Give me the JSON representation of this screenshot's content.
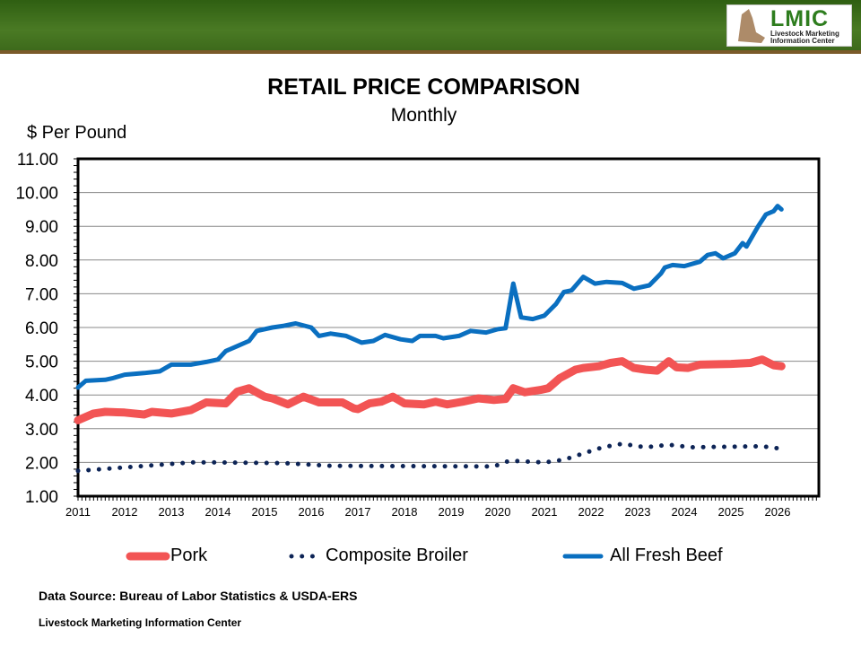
{
  "header": {
    "logo_title": "LMIC",
    "logo_subtitle_1": "Livestock Marketing",
    "logo_subtitle_2": "Information Center"
  },
  "footer": {
    "source": "Data Source: Bureau of Labor Statistics & USDA-ERS",
    "org": "Livestock Marketing Information Center"
  },
  "chart_data": {
    "type": "line",
    "title": "RETAIL PRICE COMPARISON",
    "subtitle": "Monthly",
    "ylabel": "$ Per Pound",
    "xlabel": "",
    "ylim": [
      1,
      11
    ],
    "xlim": [
      "2011-01",
      "2026-12"
    ],
    "yticks": [
      "1.00",
      "2.00",
      "3.00",
      "4.00",
      "5.00",
      "6.00",
      "7.00",
      "8.00",
      "9.00",
      "10.00",
      "11.00"
    ],
    "xticks": [
      "2011",
      "2012",
      "2013",
      "2014",
      "2015",
      "2016",
      "2017",
      "2018",
      "2019",
      "2020",
      "2021",
      "2022",
      "2023",
      "2024",
      "2025",
      "2026"
    ],
    "grid": true,
    "legend": "bottom",
    "series": [
      {
        "name": "Pork",
        "color": "#f25454",
        "style": "thick-solid",
        "points": [
          [
            "2011-01",
            3.25
          ],
          [
            "2011-05",
            3.45
          ],
          [
            "2011-08",
            3.5
          ],
          [
            "2012-01",
            3.48
          ],
          [
            "2012-06",
            3.42
          ],
          [
            "2012-08",
            3.5
          ],
          [
            "2013-01",
            3.45
          ],
          [
            "2013-06",
            3.55
          ],
          [
            "2013-10",
            3.78
          ],
          [
            "2014-03",
            3.75
          ],
          [
            "2014-06",
            4.1
          ],
          [
            "2014-09",
            4.2
          ],
          [
            "2015-01",
            3.95
          ],
          [
            "2015-03",
            3.9
          ],
          [
            "2015-07",
            3.72
          ],
          [
            "2015-11",
            3.95
          ],
          [
            "2016-03",
            3.78
          ],
          [
            "2016-09",
            3.78
          ],
          [
            "2016-12",
            3.6
          ],
          [
            "2017-01",
            3.58
          ],
          [
            "2017-04",
            3.75
          ],
          [
            "2017-07",
            3.8
          ],
          [
            "2017-10",
            3.95
          ],
          [
            "2018-01",
            3.75
          ],
          [
            "2018-06",
            3.72
          ],
          [
            "2018-09",
            3.8
          ],
          [
            "2018-12",
            3.72
          ],
          [
            "2019-04",
            3.8
          ],
          [
            "2019-08",
            3.9
          ],
          [
            "2019-12",
            3.85
          ],
          [
            "2020-03",
            3.88
          ],
          [
            "2020-05",
            4.2
          ],
          [
            "2020-08",
            4.08
          ],
          [
            "2020-12",
            4.15
          ],
          [
            "2021-02",
            4.2
          ],
          [
            "2021-05",
            4.5
          ],
          [
            "2021-09",
            4.75
          ],
          [
            "2021-11",
            4.8
          ],
          [
            "2022-03",
            4.85
          ],
          [
            "2022-06",
            4.95
          ],
          [
            "2022-09",
            5.0
          ],
          [
            "2022-12",
            4.8
          ],
          [
            "2023-03",
            4.75
          ],
          [
            "2023-06",
            4.72
          ],
          [
            "2023-09",
            5.0
          ],
          [
            "2023-11",
            4.82
          ],
          [
            "2024-02",
            4.8
          ],
          [
            "2024-05",
            4.9
          ],
          [
            "2025-01",
            4.92
          ],
          [
            "2025-06",
            4.95
          ],
          [
            "2025-09",
            5.05
          ],
          [
            "2025-12",
            4.88
          ],
          [
            "2026-02",
            4.85
          ]
        ]
      },
      {
        "name": "Composite Broiler",
        "color": "#0d2456",
        "style": "dotted",
        "points": [
          [
            "2011-01",
            1.75
          ],
          [
            "2012-01",
            1.85
          ],
          [
            "2013-06",
            2.0
          ],
          [
            "2014-01",
            2.0
          ],
          [
            "2015-06",
            1.98
          ],
          [
            "2016-06",
            1.9
          ],
          [
            "2019-12",
            1.88
          ],
          [
            "2020-04",
            2.05
          ],
          [
            "2021-01",
            2.0
          ],
          [
            "2021-06",
            2.08
          ],
          [
            "2022-04",
            2.45
          ],
          [
            "2022-09",
            2.55
          ],
          [
            "2023-03",
            2.45
          ],
          [
            "2023-09",
            2.52
          ],
          [
            "2024-03",
            2.45
          ],
          [
            "2025-09",
            2.48
          ],
          [
            "2026-01",
            2.42
          ]
        ]
      },
      {
        "name": "All Fresh Beef",
        "color": "#0a6fc0",
        "style": "solid",
        "points": [
          [
            "2011-01",
            4.22
          ],
          [
            "2011-03",
            4.42
          ],
          [
            "2011-08",
            4.45
          ],
          [
            "2011-10",
            4.5
          ],
          [
            "2012-01",
            4.6
          ],
          [
            "2012-06",
            4.65
          ],
          [
            "2012-10",
            4.7
          ],
          [
            "2013-01",
            4.9
          ],
          [
            "2013-06",
            4.9
          ],
          [
            "2013-10",
            4.98
          ],
          [
            "2014-01",
            5.05
          ],
          [
            "2014-03",
            5.3
          ],
          [
            "2014-06",
            5.45
          ],
          [
            "2014-09",
            5.6
          ],
          [
            "2014-11",
            5.9
          ],
          [
            "2015-03",
            6.0
          ],
          [
            "2015-06",
            6.05
          ],
          [
            "2015-09",
            6.12
          ],
          [
            "2016-01",
            6.0
          ],
          [
            "2016-03",
            5.75
          ],
          [
            "2016-06",
            5.82
          ],
          [
            "2016-10",
            5.75
          ],
          [
            "2017-02",
            5.55
          ],
          [
            "2017-05",
            5.6
          ],
          [
            "2017-08",
            5.78
          ],
          [
            "2017-12",
            5.65
          ],
          [
            "2018-03",
            5.6
          ],
          [
            "2018-05",
            5.75
          ],
          [
            "2018-09",
            5.75
          ],
          [
            "2018-11",
            5.68
          ],
          [
            "2019-03",
            5.75
          ],
          [
            "2019-06",
            5.9
          ],
          [
            "2019-10",
            5.85
          ],
          [
            "2020-01",
            5.95
          ],
          [
            "2020-03",
            5.98
          ],
          [
            "2020-05",
            7.3
          ],
          [
            "2020-07",
            6.3
          ],
          [
            "2020-10",
            6.25
          ],
          [
            "2021-01",
            6.35
          ],
          [
            "2021-04",
            6.7
          ],
          [
            "2021-06",
            7.05
          ],
          [
            "2021-08",
            7.1
          ],
          [
            "2021-11",
            7.5
          ],
          [
            "2022-02",
            7.3
          ],
          [
            "2022-05",
            7.35
          ],
          [
            "2022-09",
            7.32
          ],
          [
            "2022-12",
            7.15
          ],
          [
            "2023-04",
            7.25
          ],
          [
            "2023-07",
            7.6
          ],
          [
            "2023-08",
            7.78
          ],
          [
            "2023-10",
            7.85
          ],
          [
            "2024-01",
            7.82
          ],
          [
            "2024-05",
            7.95
          ],
          [
            "2024-07",
            8.15
          ],
          [
            "2024-09",
            8.2
          ],
          [
            "2024-11",
            8.05
          ],
          [
            "2025-02",
            8.2
          ],
          [
            "2025-04",
            8.5
          ],
          [
            "2025-05",
            8.4
          ],
          [
            "2025-08",
            9.0
          ],
          [
            "2025-10",
            9.35
          ],
          [
            "2025-12",
            9.45
          ],
          [
            "2026-01",
            9.6
          ],
          [
            "2026-02",
            9.5
          ]
        ]
      }
    ]
  }
}
